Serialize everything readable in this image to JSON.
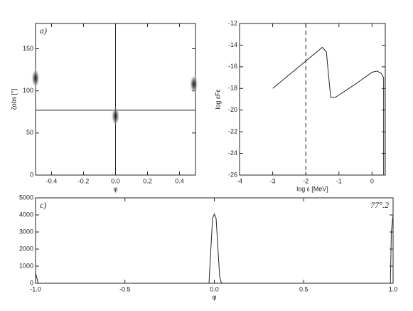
{
  "chart_data": [
    {
      "type": "scatter",
      "panel_label": "a)",
      "xlabel": "φ",
      "ylabel": "ζobs [°]",
      "xlim": [
        -0.5,
        0.5
      ],
      "ylim": [
        0,
        180
      ],
      "xticks": [
        -0.4,
        -0.2,
        {
          "value": 0,
          "label": "0.0"
        },
        0.2,
        0.4
      ],
      "yticks": [
        0,
        50,
        100,
        150
      ],
      "vlines": [
        0
      ],
      "hlines": [
        77
      ],
      "dashed": false,
      "series": [
        {
          "color": "#222",
          "x": [
            0,
            0.49,
            -0.5
          ],
          "values": [
            70,
            108,
            115
          ]
        }
      ]
    },
    {
      "type": "line",
      "xlabel": "log ε [MeV]",
      "ylabel": "log εFε",
      "xlim": [
        -4,
        0.4
      ],
      "ylim": [
        -26,
        -12
      ],
      "xticks": [
        -4,
        -3,
        -2,
        -1,
        0
      ],
      "yticks": [
        -26,
        -24,
        -22,
        -20,
        -18,
        -16,
        -14,
        -12
      ],
      "vlines": [
        -2
      ],
      "dashed": true,
      "series": [
        {
          "color": "#222",
          "x": [
            -3,
            -1.5,
            -1.38,
            -1.25,
            -1.1,
            -0.5,
            0,
            0.15,
            0.28,
            0.35,
            0.35
          ],
          "values": [
            -18,
            -14.2,
            -14.6,
            -18.8,
            -18.8,
            -17.6,
            -16.5,
            -16.4,
            -16.6,
            -17,
            -26
          ]
        }
      ]
    },
    {
      "type": "line",
      "panel_label": "c)",
      "annotation": "77°.2",
      "xlabel": "φ",
      "xlim": [
        -1,
        1
      ],
      "ylim": [
        0,
        5000
      ],
      "xticks": [
        {
          "value": -1,
          "label": "-1.0"
        },
        -0.5,
        {
          "value": 0,
          "label": "0.0"
        },
        0.5,
        {
          "value": 1,
          "label": "1.0"
        }
      ],
      "yticks": [
        0,
        1000,
        2000,
        3000,
        4000,
        5000
      ],
      "series": [
        {
          "color": "#222",
          "x": [
            -1,
            -0.99,
            -0.985
          ],
          "values": [
            600,
            200,
            0
          ]
        },
        {
          "color": "#222",
          "x": [
            -0.03,
            -0.01,
            0,
            0.01,
            0.03,
            0.04
          ],
          "values": [
            0,
            3800,
            4050,
            3800,
            400,
            0
          ]
        },
        {
          "color": "#222",
          "x": [
            0.985,
            0.99,
            1
          ],
          "values": [
            0,
            3000,
            4000
          ]
        }
      ]
    }
  ]
}
